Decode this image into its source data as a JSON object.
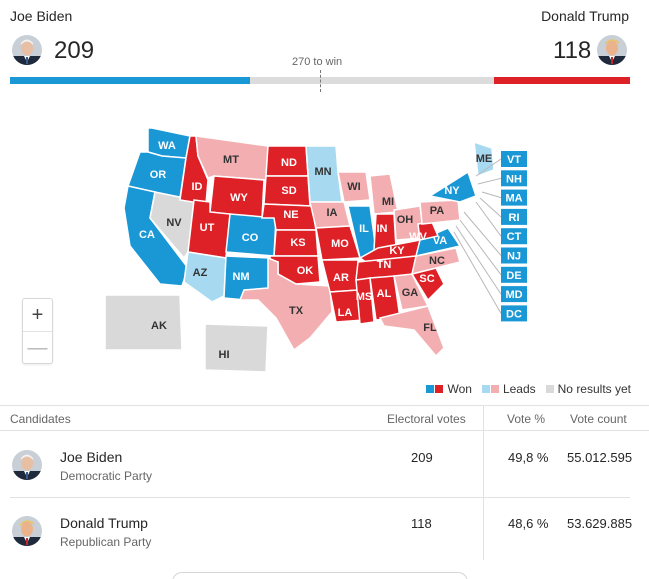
{
  "header": {
    "left_candidate": "Joe Biden",
    "right_candidate": "Donald Trump",
    "left_score": "209",
    "right_score": "118",
    "threshold_label": "270 to win",
    "blue_fraction": 0.387,
    "red_fraction": 0.219
  },
  "colors": {
    "dem_won": "#1a97d5",
    "dem_leads": "#a7daf0",
    "rep_won": "#de2027",
    "rep_leads": "#f2aeb0",
    "no_results": "#d9d9d9"
  },
  "map": {
    "states": [
      "WA",
      "OR",
      "CA",
      "NV",
      "ID",
      "MT",
      "WY",
      "UT",
      "AZ",
      "CO",
      "NM",
      "ND",
      "SD",
      "NE",
      "KS",
      "OK",
      "TX",
      "MN",
      "IA",
      "MO",
      "AR",
      "LA",
      "WI",
      "IL",
      "MI",
      "IN",
      "OH",
      "KY",
      "TN",
      "MS",
      "AL",
      "GA",
      "FL",
      "SC",
      "NC",
      "VA",
      "WV",
      "PA",
      "NY",
      "ME",
      "AK",
      "HI"
    ],
    "callouts": [
      "VT",
      "NH",
      "MA",
      "RI",
      "CT",
      "NJ",
      "DE",
      "MD",
      "DC"
    ],
    "zoom_in": "+",
    "zoom_out": "—"
  },
  "legend": {
    "won": "Won",
    "leads": "Leads",
    "no_results": "No results yet"
  },
  "table": {
    "headers": {
      "candidates": "Candidates",
      "electoral": "Electoral votes",
      "vote_pct": "Vote %",
      "vote_count": "Vote count"
    },
    "rows": [
      {
        "name": "Joe Biden",
        "party": "Democratic Party",
        "electoral": "209",
        "pct": "49,8 %",
        "count": "55.012.595"
      },
      {
        "name": "Donald Trump",
        "party": "Republican Party",
        "electoral": "118",
        "pct": "48,6 %",
        "count": "53.629.885"
      }
    ]
  }
}
